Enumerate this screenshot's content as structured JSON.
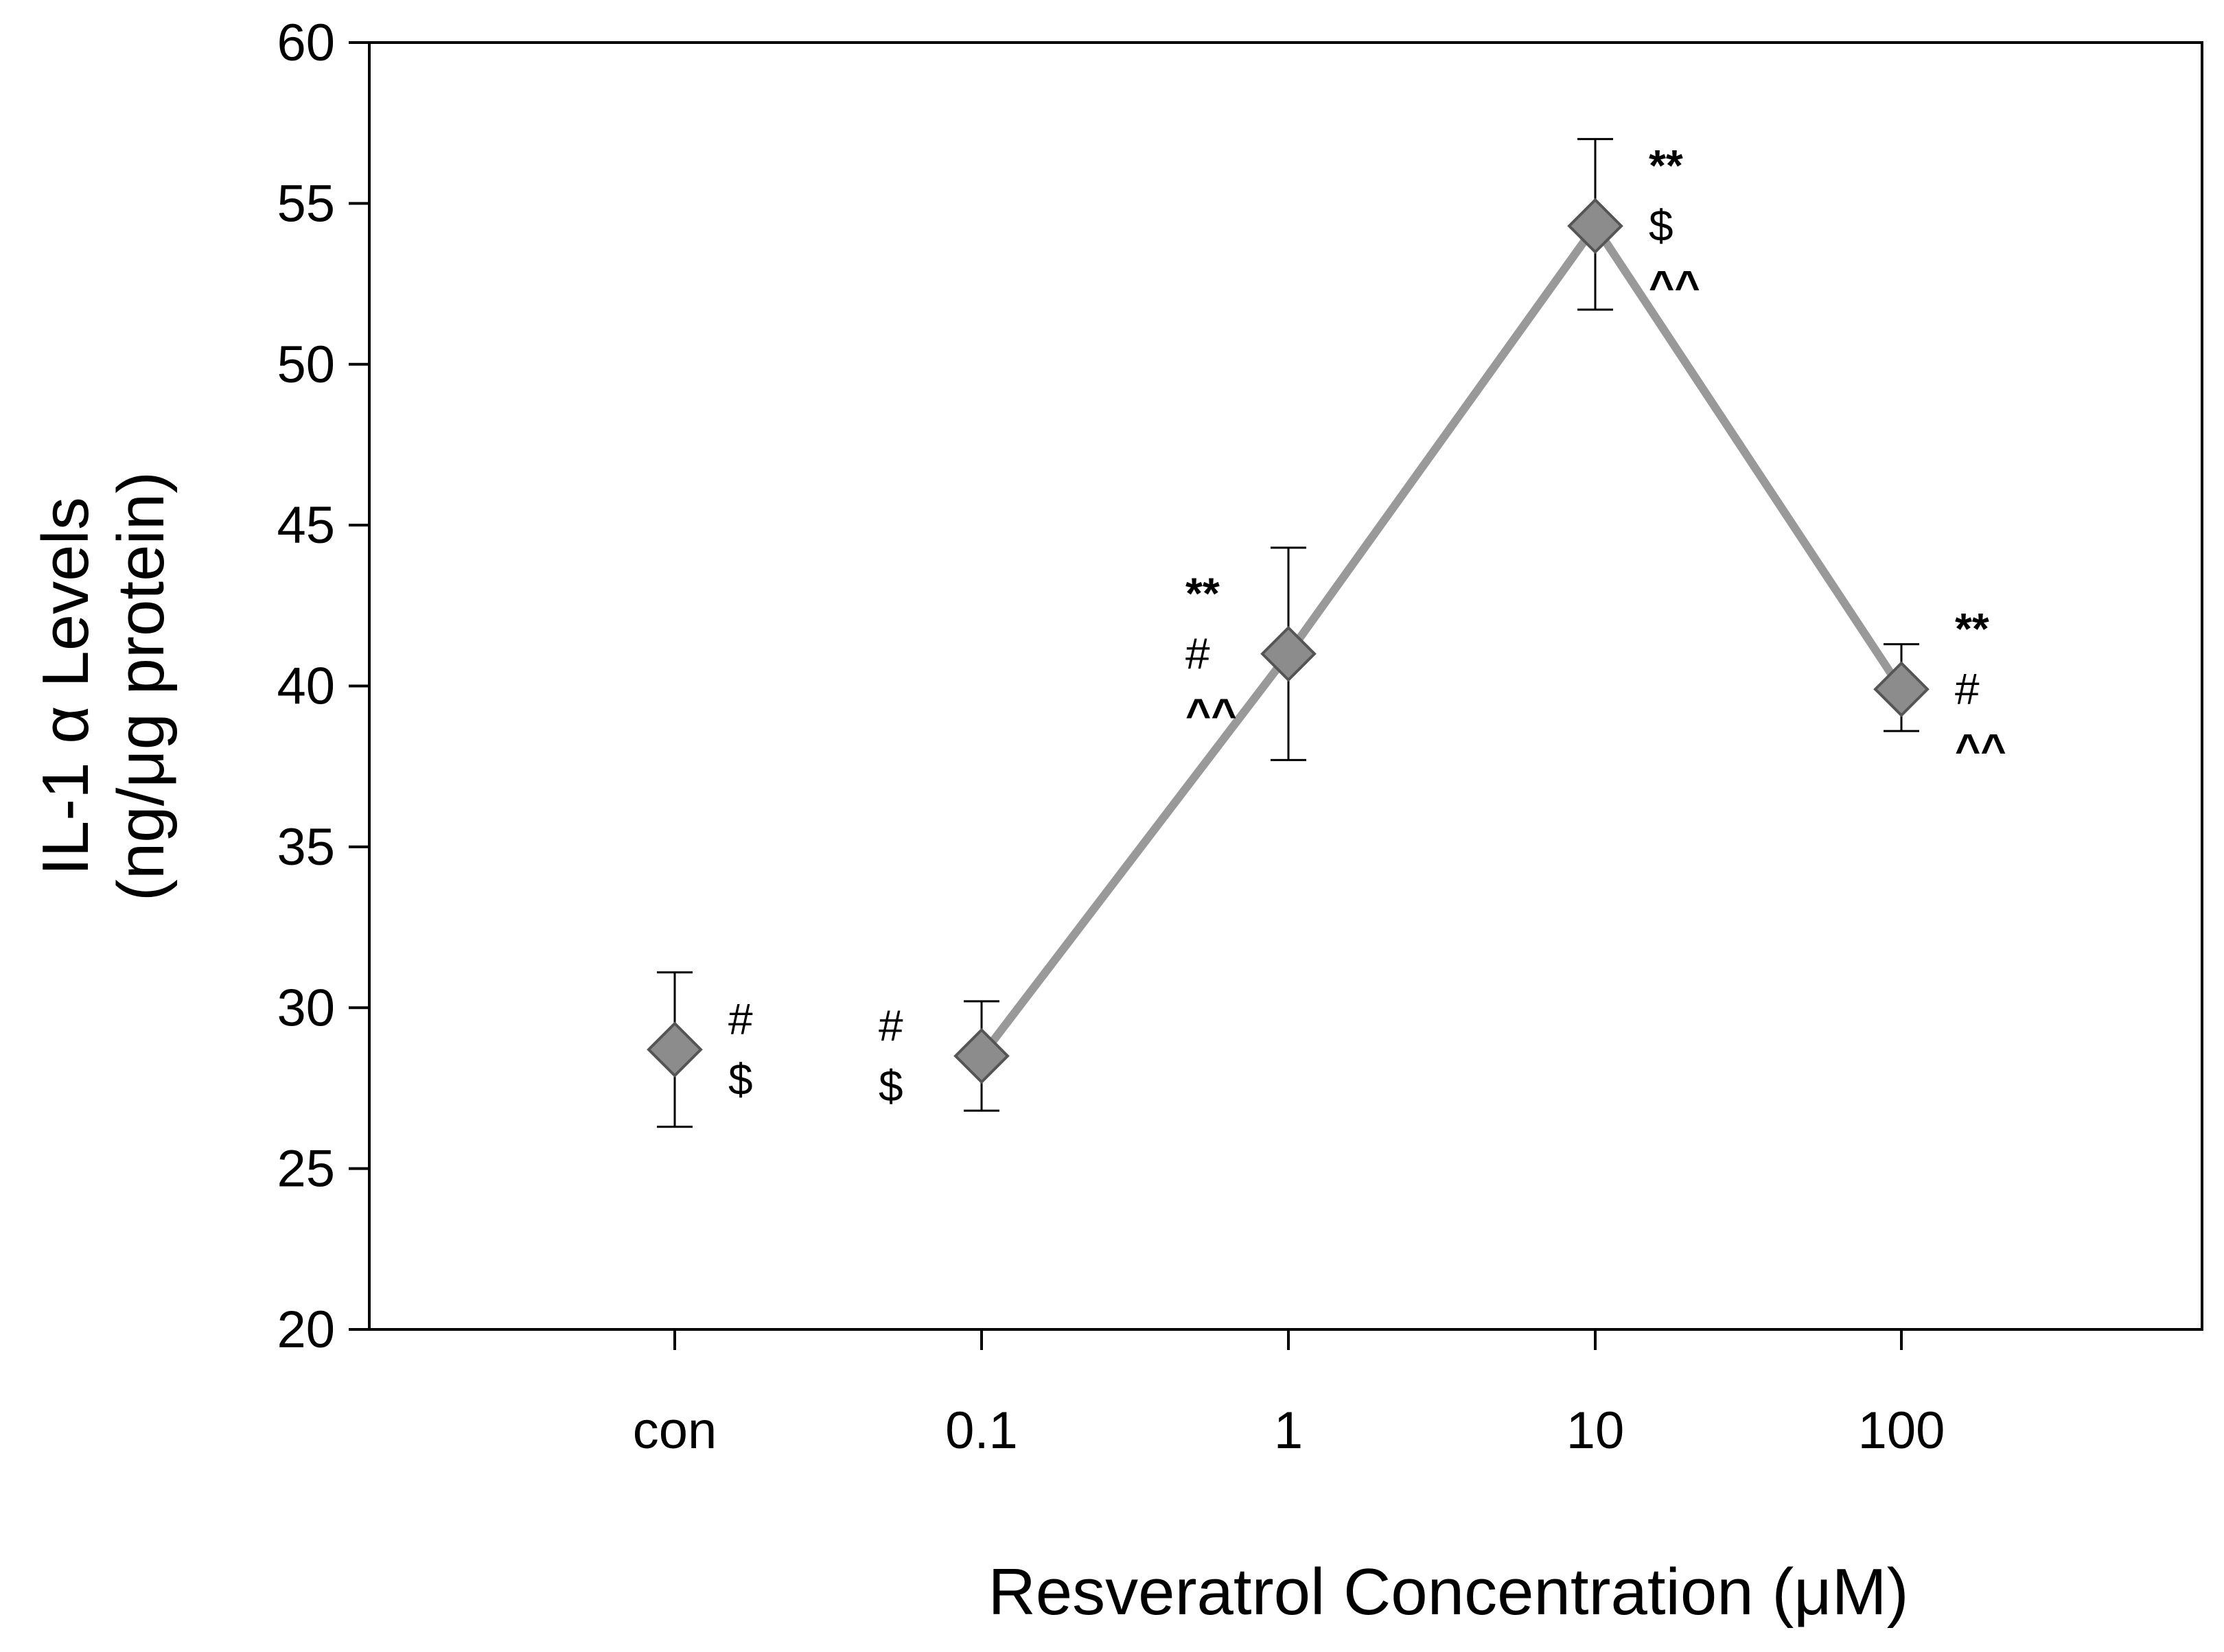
{
  "chart_data": {
    "type": "line",
    "ylabel_line1": "IL-1 α Levels",
    "ylabel_line2": "(ng/μg protein)",
    "xlabel": "Resveratrol Concentration (μM)",
    "ylim": [
      20,
      60
    ],
    "yticks": [
      20,
      25,
      30,
      35,
      40,
      45,
      50,
      55,
      60
    ],
    "categories": [
      "con",
      "0.1",
      "1",
      "10",
      "100"
    ],
    "series": [
      {
        "name": "IL-1 alpha",
        "values": [
          28.7,
          28.5,
          41.0,
          54.3,
          39.9
        ],
        "errors_upper": [
          31.1,
          30.2,
          44.3,
          57.0,
          41.3
        ],
        "errors_lower": [
          26.3,
          26.8,
          37.7,
          51.7,
          38.6
        ],
        "connected_from_index": 1
      }
    ],
    "annotations": [
      {
        "category": "con",
        "lines": [
          "#",
          "$"
        ],
        "side": "right"
      },
      {
        "category": "0.1",
        "lines": [
          "#",
          "$"
        ],
        "side": "left"
      },
      {
        "category": "1",
        "lines": [
          "**",
          "#",
          "^^"
        ],
        "side": "left"
      },
      {
        "category": "10",
        "lines": [
          "**",
          "$",
          "^^"
        ],
        "side": "right"
      },
      {
        "category": "100",
        "lines": [
          "**",
          "#",
          "^^"
        ],
        "side": "right"
      }
    ],
    "colors": {
      "line": "#999999",
      "marker_fill": "#8c8c8c",
      "marker_stroke": "#555555",
      "axis": "#000000"
    }
  }
}
